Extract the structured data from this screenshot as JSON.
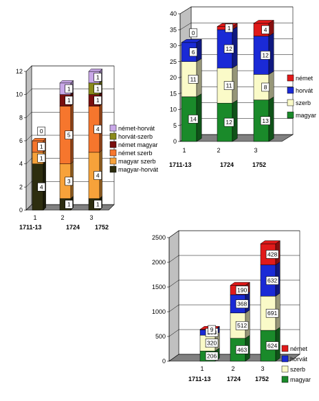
{
  "chart_data": [
    {
      "type": "bar",
      "stacked": true,
      "three_d": true,
      "categories": [
        "1",
        "2",
        "3"
      ],
      "years": [
        "1711-13",
        "1724",
        "1752"
      ],
      "ylim": [
        0,
        12
      ],
      "yticks": [
        0,
        2,
        4,
        6,
        8,
        10,
        12
      ],
      "grid": true,
      "legend_position": "right",
      "series": [
        {
          "name": "magyar-horvát",
          "color": "#2d2d0f",
          "values": [
            4,
            1,
            1
          ]
        },
        {
          "name": "magyar szerb",
          "color": "#f7a23a",
          "values": [
            1,
            3,
            4
          ]
        },
        {
          "name": "német szerb",
          "color": "#f6762d",
          "values": [
            1,
            5,
            4
          ]
        },
        {
          "name": "német magyar",
          "color": "#7a0f0f",
          "values": [
            0,
            1,
            1
          ]
        },
        {
          "name": "horvát-szerb",
          "color": "#8a8a1a",
          "values": [
            0,
            0,
            1
          ]
        },
        {
          "name": "német-horvát",
          "color": "#c9a8e8",
          "values": [
            0,
            1,
            1
          ]
        }
      ],
      "labels": [
        [
          "4",
          "1",
          "1",
          "0"
        ],
        [
          "1",
          "3",
          "5",
          "1",
          "1"
        ],
        [
          "1",
          "4",
          "4",
          "1",
          "1",
          "1"
        ]
      ]
    },
    {
      "type": "bar",
      "stacked": true,
      "three_d": true,
      "categories": [
        "1",
        "2",
        "3"
      ],
      "years": [
        "1711-13",
        "1724",
        "1752"
      ],
      "ylim": [
        0,
        40
      ],
      "yticks": [
        0,
        5,
        10,
        15,
        20,
        25,
        30,
        35,
        40
      ],
      "grid": true,
      "legend_position": "right",
      "series": [
        {
          "name": "magyar",
          "color": "#1a8a2a",
          "values": [
            14,
            12,
            13
          ]
        },
        {
          "name": "szerb",
          "color": "#fafac8",
          "values": [
            11,
            11,
            8
          ]
        },
        {
          "name": "horvát",
          "color": "#1a2ad6",
          "values": [
            6,
            12,
            12
          ]
        },
        {
          "name": "német",
          "color": "#e01a1a",
          "values": [
            0,
            1,
            4
          ]
        }
      ]
    },
    {
      "type": "bar",
      "stacked": true,
      "three_d": true,
      "categories": [
        "1",
        "2",
        "3"
      ],
      "years": [
        "1711-13",
        "1724",
        "1752"
      ],
      "ylim": [
        0,
        2500
      ],
      "yticks": [
        0,
        500,
        1000,
        1500,
        2000,
        2500
      ],
      "grid": true,
      "legend_position": "right",
      "series": [
        {
          "name": "magyar",
          "color": "#1a8a2a",
          "values": [
            206,
            463,
            624
          ]
        },
        {
          "name": "szerb",
          "color": "#fafac8",
          "values": [
            320,
            512,
            691
          ]
        },
        {
          "name": "horvát",
          "color": "#1a2ad6",
          "values": [
            108,
            368,
            632
          ]
        },
        {
          "name": "német",
          "color": "#e01a1a",
          "values": [
            9,
            190,
            428
          ]
        }
      ]
    }
  ]
}
